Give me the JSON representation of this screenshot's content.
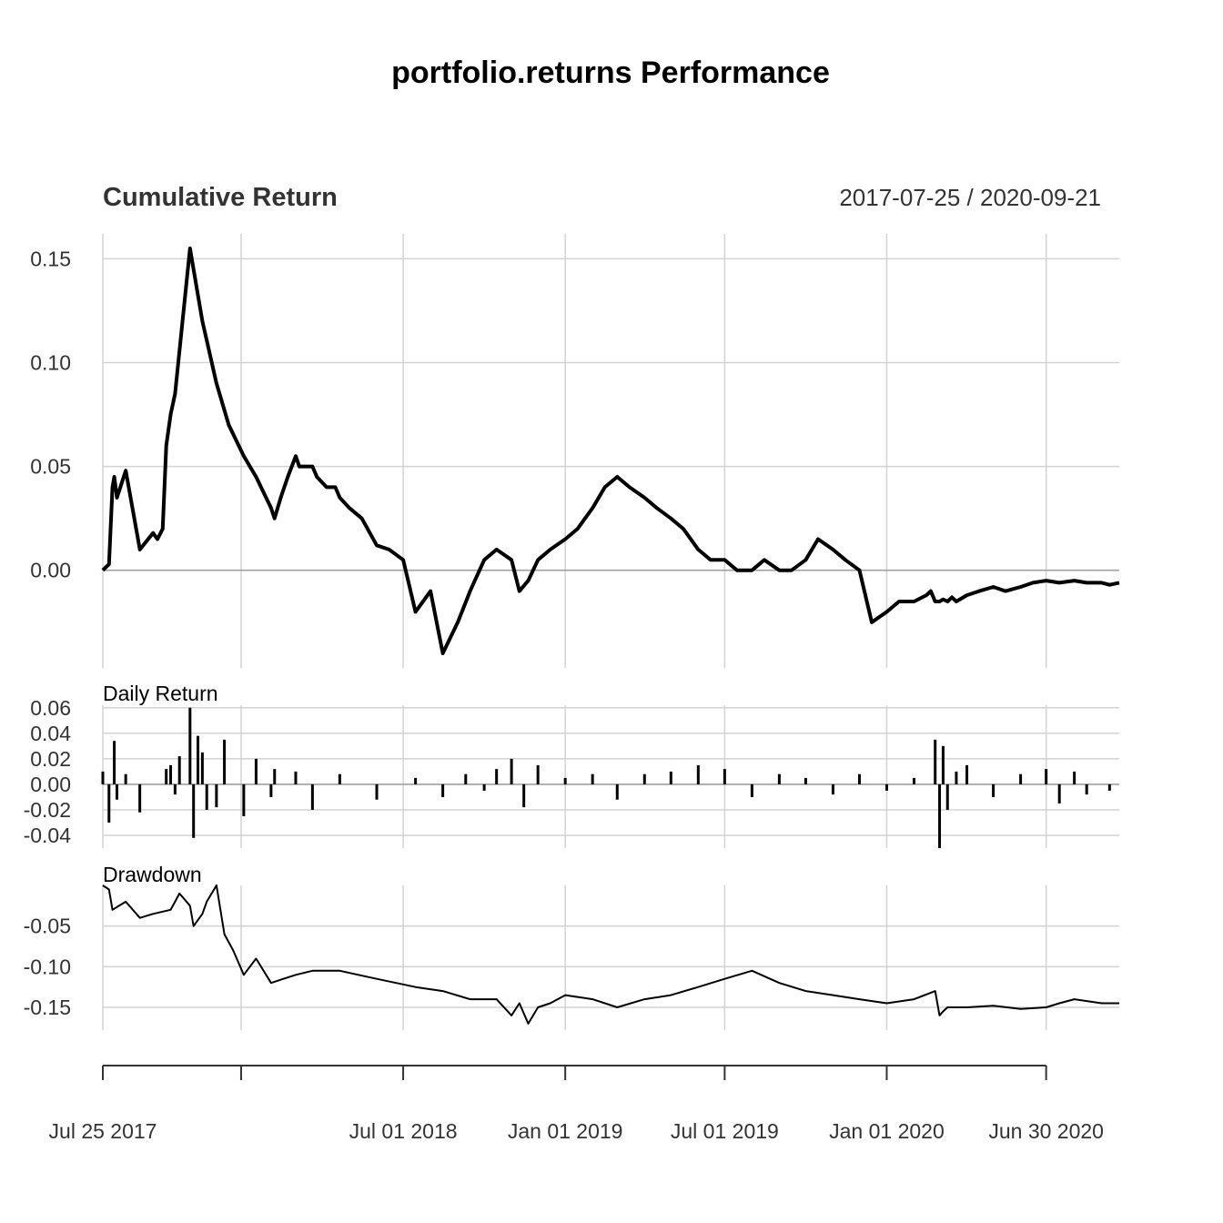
{
  "chart_data": [
    {
      "panel": "cumulative_return",
      "type": "line",
      "title": "portfolio.returns Performance",
      "subtitle": "Cumulative Return",
      "date_range": "2017-07-25 / 2020-09-21",
      "ylim": [
        -0.047,
        0.162
      ],
      "yticks": [
        0.15,
        0.1,
        0.05,
        0.0
      ],
      "ytick_labels": [
        "0.15",
        "0.10",
        "0.05",
        "0.00"
      ],
      "x": [
        "2017-07-25",
        "2017-08-01",
        "2017-08-05",
        "2017-08-07",
        "2017-08-10",
        "2017-08-20",
        "2017-09-05",
        "2017-09-20",
        "2017-09-25",
        "2017-10-01",
        "2017-10-05",
        "2017-10-10",
        "2017-10-15",
        "2017-11-01",
        "2017-11-15",
        "2017-12-01",
        "2017-12-15",
        "2018-01-01",
        "2018-01-15",
        "2018-02-01",
        "2018-02-05",
        "2018-02-12",
        "2018-02-20",
        "2018-03-01",
        "2018-03-05",
        "2018-03-15",
        "2018-03-20",
        "2018-03-25",
        "2018-04-05",
        "2018-04-15",
        "2018-04-20",
        "2018-05-01",
        "2018-05-15",
        "2018-06-01",
        "2018-06-15",
        "2018-07-01",
        "2018-07-15",
        "2018-08-01",
        "2018-08-15",
        "2018-09-01",
        "2018-09-15",
        "2018-10-01",
        "2018-10-15",
        "2018-11-01",
        "2018-11-10",
        "2018-11-20",
        "2018-12-01",
        "2018-12-15",
        "2019-01-01",
        "2019-01-15",
        "2019-02-01",
        "2019-02-15",
        "2019-03-01",
        "2019-03-15",
        "2019-04-01",
        "2019-04-15",
        "2019-05-01",
        "2019-05-15",
        "2019-06-01",
        "2019-06-15",
        "2019-07-01",
        "2019-07-15",
        "2019-08-01",
        "2019-08-15",
        "2019-09-01",
        "2019-09-15",
        "2019-10-01",
        "2019-10-15",
        "2019-11-01",
        "2019-11-15",
        "2019-12-01",
        "2019-12-15",
        "2020-01-01",
        "2020-01-15",
        "2020-02-01",
        "2020-02-15",
        "2020-02-20",
        "2020-02-25",
        "2020-03-01",
        "2020-03-05",
        "2020-03-10",
        "2020-03-15",
        "2020-03-20",
        "2020-04-01",
        "2020-04-15",
        "2020-05-01",
        "2020-05-15",
        "2020-06-01",
        "2020-06-15",
        "2020-06-30",
        "2020-07-15",
        "2020-08-01",
        "2020-08-15",
        "2020-09-01",
        "2020-09-10",
        "2020-09-21"
      ],
      "values": [
        0.0,
        0.003,
        0.04,
        0.045,
        0.035,
        0.048,
        0.01,
        0.018,
        0.015,
        0.02,
        0.06,
        0.075,
        0.085,
        0.155,
        0.12,
        0.09,
        0.07,
        0.055,
        0.045,
        0.03,
        0.025,
        0.035,
        0.045,
        0.055,
        0.05,
        0.05,
        0.05,
        0.045,
        0.04,
        0.04,
        0.035,
        0.03,
        0.025,
        0.012,
        0.01,
        0.005,
        -0.02,
        -0.01,
        -0.04,
        -0.025,
        -0.01,
        0.005,
        0.01,
        0.005,
        -0.01,
        -0.005,
        0.005,
        0.01,
        0.015,
        0.02,
        0.03,
        0.04,
        0.045,
        0.04,
        0.035,
        0.03,
        0.025,
        0.02,
        0.01,
        0.005,
        0.005,
        0.0,
        0.0,
        0.005,
        0.0,
        0.0,
        0.005,
        0.015,
        0.01,
        0.005,
        0.0,
        -0.025,
        -0.02,
        -0.015,
        -0.015,
        -0.012,
        -0.01,
        -0.015,
        -0.015,
        -0.014,
        -0.015,
        -0.013,
        -0.015,
        -0.012,
        -0.01,
        -0.008,
        -0.01,
        -0.008,
        -0.006,
        -0.005,
        -0.006,
        -0.005,
        -0.006,
        -0.006,
        -0.007,
        -0.006
      ]
    },
    {
      "panel": "daily_return",
      "type": "bar",
      "label": "Daily Return",
      "ylim": [
        -0.05,
        0.062
      ],
      "yticks": [
        0.06,
        0.04,
        0.02,
        0.0,
        -0.02,
        -0.04
      ],
      "ytick_labels": [
        "0.06",
        "0.04",
        "0.02",
        "0.00",
        "-0.02",
        "-0.04"
      ],
      "x": [
        "2017-07-25",
        "2017-08-01",
        "2017-08-07",
        "2017-08-10",
        "2017-08-20",
        "2017-09-05",
        "2017-10-05",
        "2017-10-10",
        "2017-10-15",
        "2017-10-20",
        "2017-11-01",
        "2017-11-05",
        "2017-11-10",
        "2017-11-15",
        "2017-11-20",
        "2017-12-01",
        "2017-12-10",
        "2018-01-01",
        "2018-01-15",
        "2018-02-01",
        "2018-02-05",
        "2018-03-01",
        "2018-03-20",
        "2018-04-20",
        "2018-06-01",
        "2018-07-15",
        "2018-08-15",
        "2018-09-10",
        "2018-10-01",
        "2018-10-15",
        "2018-11-01",
        "2018-11-15",
        "2018-12-01",
        "2019-01-01",
        "2019-02-01",
        "2019-03-01",
        "2019-04-01",
        "2019-05-01",
        "2019-06-01",
        "2019-07-01",
        "2019-08-01",
        "2019-09-01",
        "2019-10-01",
        "2019-11-01",
        "2019-12-01",
        "2020-01-01",
        "2020-02-01",
        "2020-02-25",
        "2020-03-01",
        "2020-03-05",
        "2020-03-10",
        "2020-03-20",
        "2020-04-01",
        "2020-05-01",
        "2020-06-01",
        "2020-06-30",
        "2020-07-15",
        "2020-08-01",
        "2020-08-15",
        "2020-09-10"
      ],
      "values": [
        0.01,
        -0.03,
        0.034,
        -0.012,
        0.008,
        -0.022,
        0.012,
        0.015,
        -0.008,
        0.022,
        0.06,
        -0.042,
        0.038,
        0.025,
        -0.02,
        -0.018,
        0.035,
        -0.025,
        0.02,
        -0.01,
        0.012,
        0.01,
        -0.02,
        0.008,
        -0.012,
        0.005,
        -0.01,
        0.008,
        -0.005,
        0.012,
        0.02,
        -0.018,
        0.015,
        0.005,
        0.008,
        -0.012,
        0.008,
        0.01,
        0.015,
        0.012,
        -0.01,
        0.008,
        0.005,
        -0.008,
        0.008,
        -0.005,
        0.005,
        0.035,
        -0.05,
        0.03,
        -0.02,
        0.01,
        0.015,
        -0.01,
        0.008,
        0.012,
        -0.015,
        0.01,
        -0.008,
        -0.005
      ]
    },
    {
      "panel": "drawdown",
      "type": "line",
      "label": "Drawdown",
      "ylim": [
        -0.178,
        0.0
      ],
      "yticks": [
        -0.05,
        -0.1,
        -0.15
      ],
      "ytick_labels": [
        "-0.05",
        "-0.10",
        "-0.15"
      ],
      "x": [
        "2017-07-25",
        "2017-08-01",
        "2017-08-05",
        "2017-08-20",
        "2017-09-05",
        "2017-09-20",
        "2017-10-10",
        "2017-10-15",
        "2017-10-20",
        "2017-11-01",
        "2017-11-05",
        "2017-11-15",
        "2017-11-20",
        "2017-12-01",
        "2017-12-10",
        "2017-12-20",
        "2018-01-01",
        "2018-01-15",
        "2018-02-01",
        "2018-02-15",
        "2018-03-01",
        "2018-03-20",
        "2018-04-20",
        "2018-06-01",
        "2018-07-15",
        "2018-08-15",
        "2018-09-15",
        "2018-10-15",
        "2018-11-01",
        "2018-11-10",
        "2018-11-20",
        "2018-12-01",
        "2018-12-15",
        "2019-01-01",
        "2019-02-01",
        "2019-03-01",
        "2019-04-01",
        "2019-05-01",
        "2019-06-01",
        "2019-07-01",
        "2019-08-01",
        "2019-09-01",
        "2019-10-01",
        "2019-11-01",
        "2019-12-01",
        "2020-01-01",
        "2020-02-01",
        "2020-02-25",
        "2020-03-01",
        "2020-03-05",
        "2020-03-10",
        "2020-04-01",
        "2020-05-01",
        "2020-06-01",
        "2020-06-30",
        "2020-07-15",
        "2020-08-01",
        "2020-09-01",
        "2020-09-21"
      ],
      "values": [
        0.0,
        -0.005,
        -0.03,
        -0.02,
        -0.04,
        -0.035,
        -0.03,
        -0.02,
        -0.01,
        -0.025,
        -0.05,
        -0.035,
        -0.02,
        -0.0,
        -0.06,
        -0.08,
        -0.11,
        -0.09,
        -0.12,
        -0.115,
        -0.11,
        -0.105,
        -0.105,
        -0.115,
        -0.125,
        -0.13,
        -0.14,
        -0.14,
        -0.16,
        -0.145,
        -0.17,
        -0.15,
        -0.145,
        -0.135,
        -0.14,
        -0.15,
        -0.14,
        -0.135,
        -0.125,
        -0.115,
        -0.105,
        -0.12,
        -0.13,
        -0.135,
        -0.14,
        -0.145,
        -0.14,
        -0.13,
        -0.16,
        -0.155,
        -0.15,
        -0.15,
        -0.148,
        -0.152,
        -0.15,
        -0.145,
        -0.14,
        -0.145,
        -0.145
      ]
    }
  ],
  "x_axis": {
    "range": [
      "2017-07-25",
      "2020-09-21"
    ],
    "tick_dates": [
      "2017-07-25",
      "2017-12-29",
      "2018-07-01",
      "2019-01-01",
      "2019-07-01",
      "2020-01-01",
      "2020-06-30"
    ],
    "tick_labels": [
      "Jul 25 2017",
      "",
      "Jul 01 2018",
      "Jan 01 2019",
      "Jul 01 2019",
      "Jan 01 2020",
      "Jun 30 2020"
    ]
  },
  "colors": {
    "series": "#000000",
    "grid": "#d3d3d3",
    "zero_line": "#a0a0a0",
    "axis_text": "#333333"
  },
  "grid": true
}
